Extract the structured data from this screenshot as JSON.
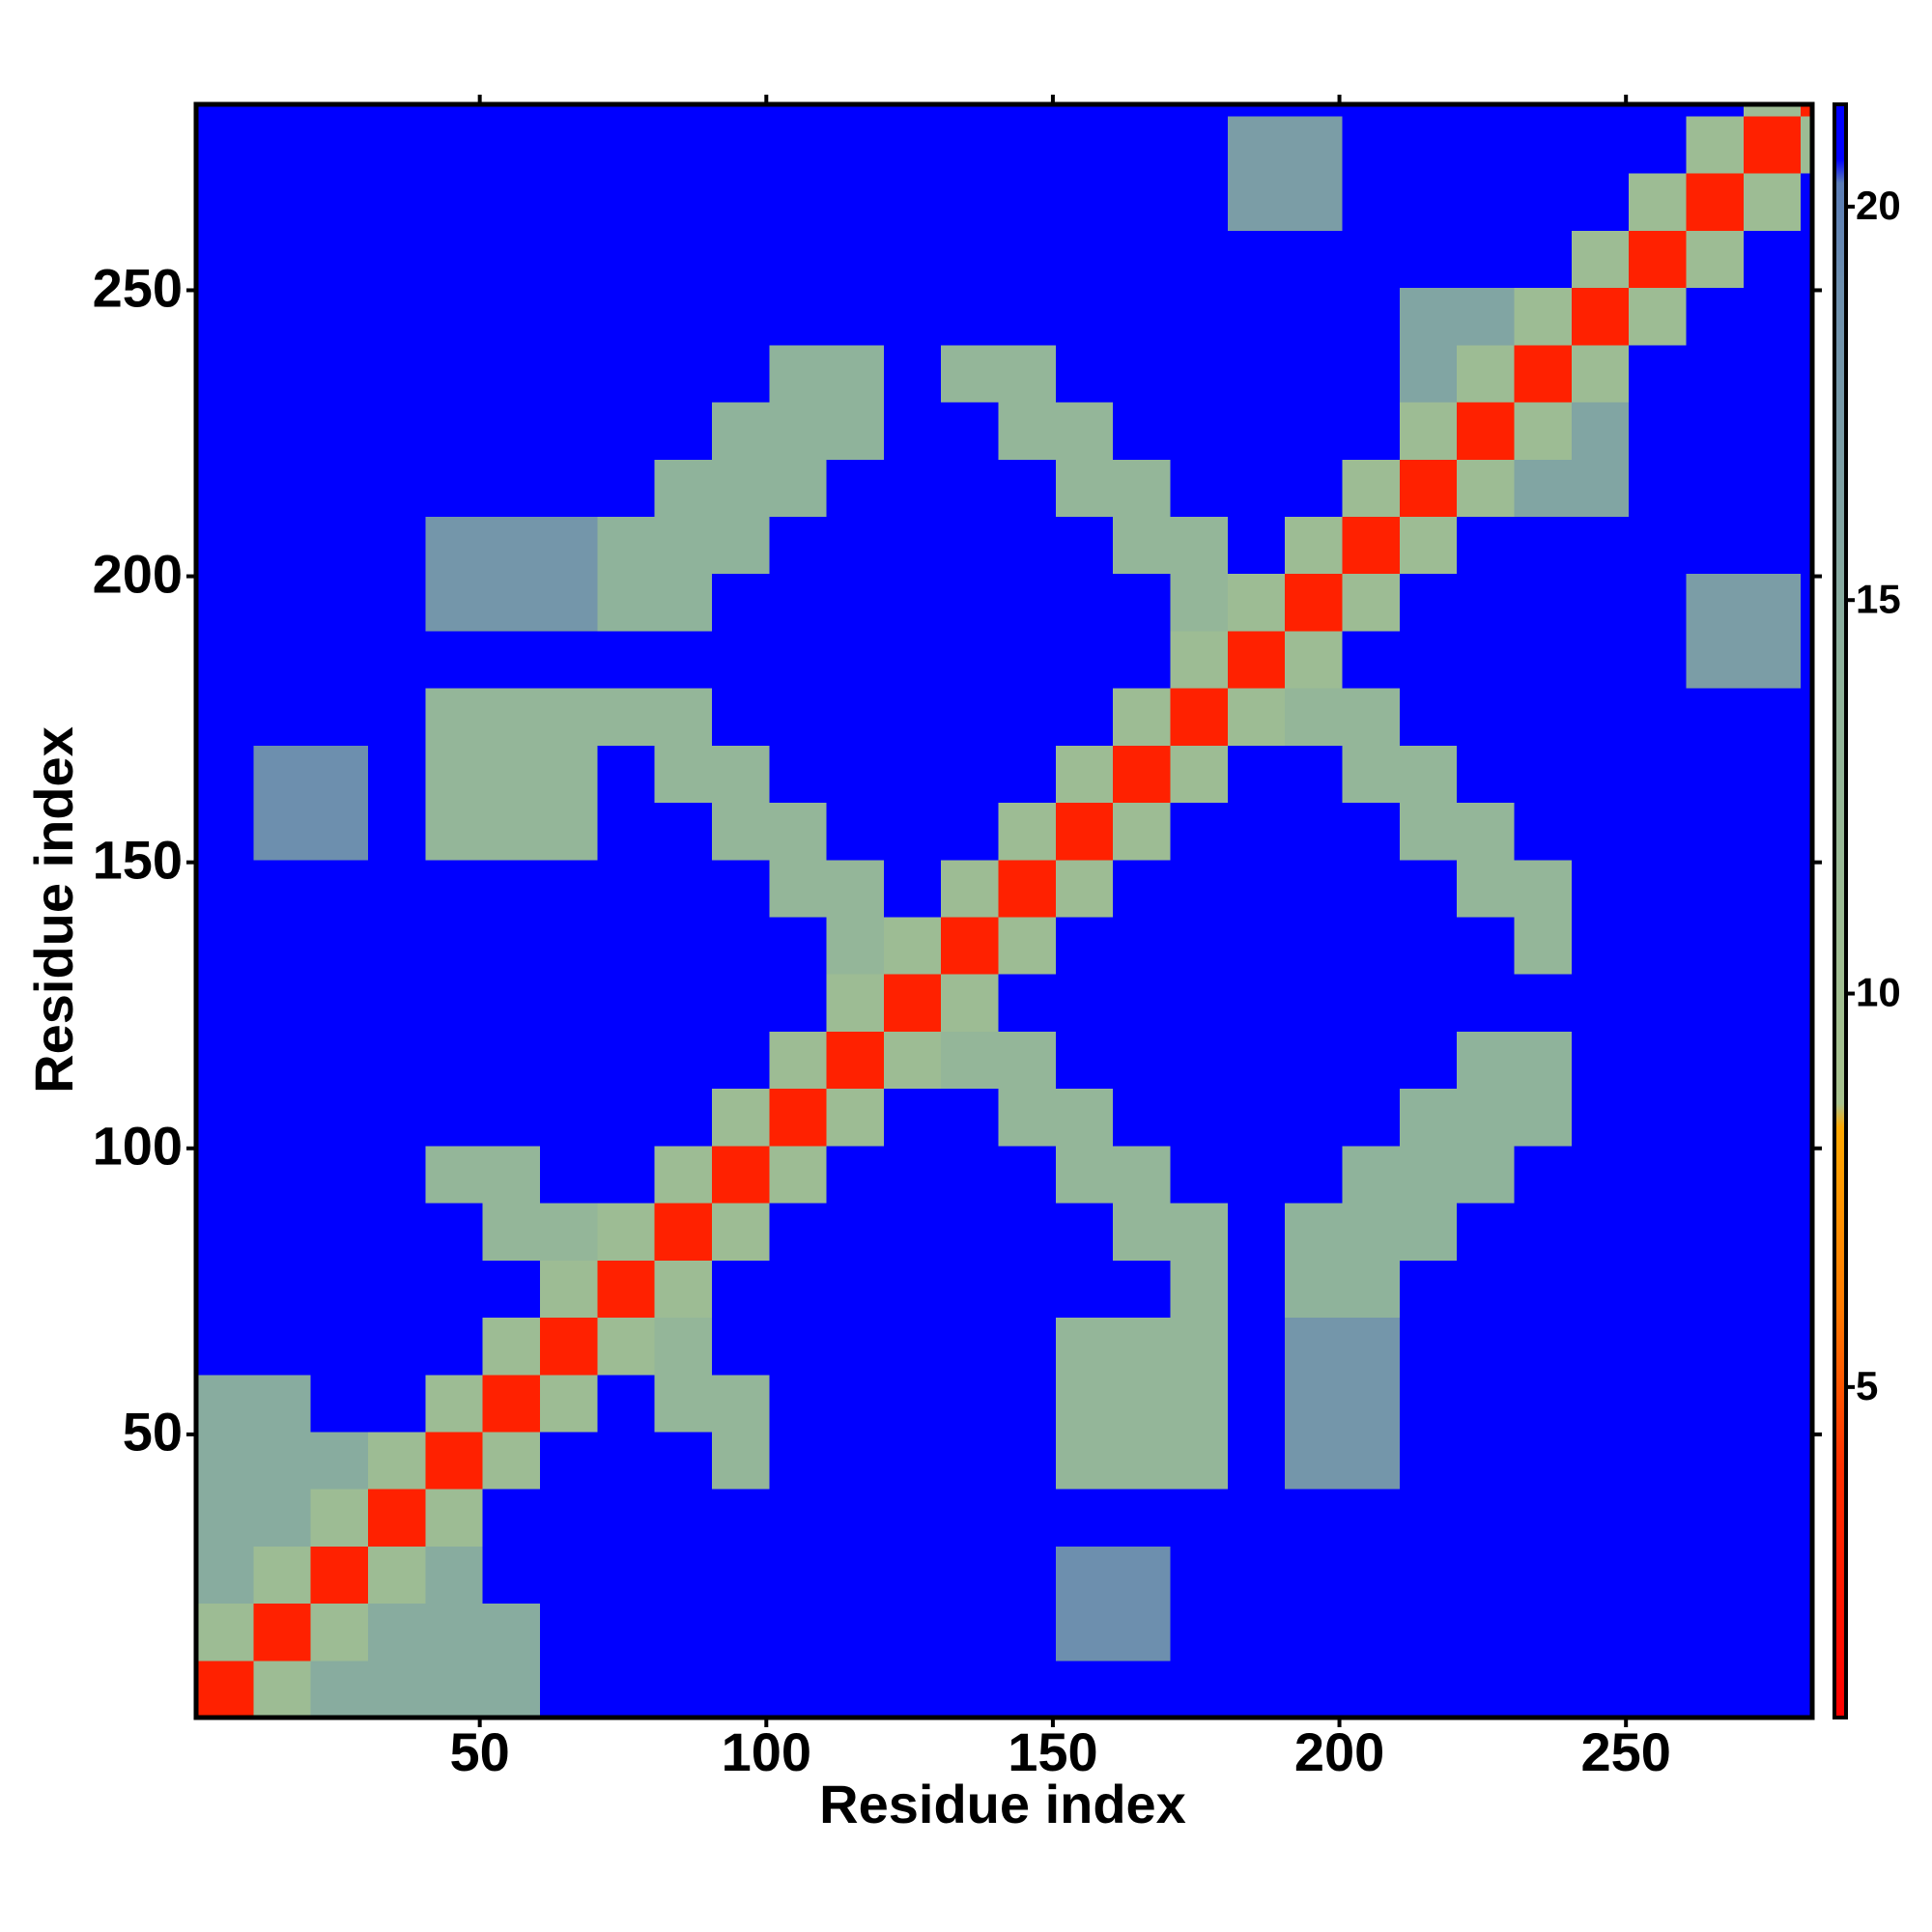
{
  "chart_data": {
    "type": "heatmap",
    "xlabel": "Residue index",
    "ylabel": "Residue index",
    "xlim": [
      0.5,
      282.5
    ],
    "ylim": [
      0.5,
      282.5
    ],
    "xticks": [
      50,
      100,
      150,
      200,
      250
    ],
    "yticks": [
      50,
      100,
      150,
      200,
      250
    ],
    "xbins": [
      0.5,
      10.5,
      20.5,
      30.5,
      40.5,
      50.5,
      60.5,
      70.5,
      80.5,
      90.5,
      100.5,
      110.5,
      120.5,
      130.5,
      140.5,
      150.5,
      160.5,
      170.5,
      180.5,
      190.5,
      200.5,
      210.5,
      220.5,
      230.5,
      240.5,
      250.5,
      260.5,
      270.5,
      280.5,
      282.5
    ],
    "ybins": [
      0.5,
      10.5,
      20.5,
      30.5,
      40.5,
      50.5,
      60.5,
      70.5,
      80.5,
      90.5,
      100.5,
      110.5,
      120.5,
      130.5,
      140.5,
      150.5,
      160.5,
      170.5,
      180.5,
      190.5,
      200.5,
      210.5,
      220.5,
      230.5,
      240.5,
      250.5,
      260.5,
      270.5,
      280.5,
      282.5
    ],
    "z": [
      [
        3,
        11,
        15,
        15,
        15,
        15,
        21,
        21,
        21,
        21,
        21,
        21,
        21,
        21,
        21,
        21,
        21,
        21,
        21,
        21,
        21,
        21,
        21,
        21,
        21,
        21,
        21,
        21,
        21
      ],
      [
        11,
        3,
        11,
        15,
        15,
        15,
        21,
        21,
        21,
        21,
        21,
        21,
        21,
        21,
        21,
        19,
        19,
        21,
        21,
        21,
        21,
        21,
        21,
        21,
        21,
        21,
        21,
        21,
        21
      ],
      [
        15,
        11,
        3,
        11,
        15,
        21,
        21,
        21,
        21,
        21,
        21,
        21,
        21,
        21,
        21,
        19,
        19,
        21,
        21,
        21,
        21,
        21,
        21,
        21,
        21,
        21,
        21,
        21,
        21
      ],
      [
        15,
        15,
        11,
        3,
        11,
        21,
        21,
        21,
        21,
        21,
        21,
        21,
        21,
        21,
        21,
        21,
        21,
        21,
        21,
        21,
        21,
        21,
        21,
        21,
        21,
        21,
        21,
        21,
        21
      ],
      [
        15,
        15,
        15,
        11,
        3,
        11,
        21,
        21,
        21,
        13,
        21,
        21,
        21,
        21,
        21,
        13,
        13,
        13,
        21,
        18,
        18,
        21,
        21,
        21,
        21,
        21,
        21,
        21,
        21
      ],
      [
        15,
        15,
        21,
        21,
        11,
        3,
        11,
        21,
        13,
        13,
        21,
        21,
        21,
        21,
        21,
        13,
        13,
        13,
        21,
        18,
        18,
        21,
        21,
        21,
        21,
        21,
        21,
        21,
        21
      ],
      [
        21,
        21,
        21,
        21,
        21,
        11,
        3,
        11,
        13,
        21,
        21,
        21,
        21,
        21,
        21,
        13,
        13,
        13,
        21,
        18,
        18,
        21,
        21,
        21,
        21,
        21,
        21,
        21,
        21
      ],
      [
        21,
        21,
        21,
        21,
        21,
        21,
        11,
        3,
        11,
        21,
        21,
        21,
        21,
        21,
        21,
        21,
        21,
        13,
        21,
        14,
        14,
        21,
        21,
        21,
        21,
        21,
        21,
        21,
        21
      ],
      [
        21,
        21,
        21,
        21,
        21,
        13,
        13,
        11,
        3,
        11,
        21,
        21,
        21,
        21,
        21,
        21,
        13,
        13,
        21,
        14,
        14,
        14,
        21,
        21,
        21,
        21,
        21,
        21,
        21
      ],
      [
        21,
        21,
        21,
        21,
        13,
        13,
        21,
        21,
        11,
        3,
        11,
        21,
        21,
        21,
        21,
        13,
        13,
        21,
        21,
        21,
        14,
        14,
        14,
        21,
        21,
        21,
        21,
        21,
        21
      ],
      [
        21,
        21,
        21,
        21,
        21,
        21,
        21,
        21,
        21,
        11,
        3,
        11,
        21,
        21,
        13,
        13,
        21,
        21,
        21,
        21,
        21,
        14,
        14,
        14,
        21,
        21,
        21,
        21,
        21
      ],
      [
        21,
        21,
        21,
        21,
        21,
        21,
        21,
        21,
        21,
        21,
        11,
        3,
        11,
        13,
        13,
        21,
        21,
        21,
        21,
        21,
        21,
        21,
        14,
        14,
        21,
        21,
        21,
        21,
        21
      ],
      [
        21,
        21,
        21,
        21,
        21,
        21,
        21,
        21,
        21,
        21,
        21,
        11,
        3,
        11,
        21,
        21,
        21,
        21,
        21,
        21,
        21,
        21,
        21,
        21,
        21,
        21,
        21,
        21,
        21
      ],
      [
        21,
        21,
        21,
        21,
        21,
        21,
        21,
        21,
        21,
        21,
        21,
        13,
        11,
        3,
        11,
        21,
        21,
        21,
        21,
        21,
        21,
        21,
        21,
        13,
        21,
        21,
        21,
        21,
        21
      ],
      [
        21,
        21,
        21,
        21,
        21,
        21,
        21,
        21,
        21,
        21,
        13,
        13,
        21,
        11,
        3,
        11,
        21,
        21,
        21,
        21,
        21,
        21,
        13,
        13,
        21,
        21,
        21,
        21,
        21
      ],
      [
        21,
        19,
        19,
        21,
        13,
        13,
        13,
        21,
        21,
        13,
        13,
        21,
        21,
        21,
        11,
        3,
        11,
        21,
        21,
        21,
        21,
        13,
        13,
        21,
        21,
        21,
        21,
        21,
        21
      ],
      [
        21,
        19,
        19,
        21,
        13,
        13,
        13,
        21,
        13,
        13,
        21,
        21,
        21,
        21,
        21,
        11,
        3,
        11,
        21,
        21,
        13,
        13,
        21,
        21,
        21,
        21,
        21,
        21,
        21
      ],
      [
        21,
        21,
        21,
        21,
        13,
        13,
        13,
        13,
        13,
        21,
        21,
        21,
        21,
        21,
        21,
        21,
        11,
        3,
        11,
        13,
        13,
        21,
        21,
        21,
        21,
        21,
        21,
        21,
        21
      ],
      [
        21,
        21,
        21,
        21,
        21,
        21,
        21,
        21,
        21,
        21,
        21,
        21,
        21,
        21,
        21,
        21,
        21,
        11,
        3,
        11,
        21,
        21,
        21,
        21,
        21,
        21,
        17,
        17,
        21
      ],
      [
        21,
        21,
        21,
        21,
        18,
        18,
        18,
        14,
        14,
        21,
        21,
        21,
        21,
        21,
        21,
        21,
        21,
        13,
        11,
        3,
        11,
        21,
        21,
        21,
        21,
        21,
        17,
        17,
        21
      ],
      [
        21,
        21,
        21,
        21,
        18,
        18,
        18,
        14,
        14,
        14,
        21,
        21,
        21,
        21,
        21,
        21,
        13,
        13,
        21,
        11,
        3,
        11,
        21,
        21,
        21,
        21,
        21,
        21,
        21
      ],
      [
        21,
        21,
        21,
        21,
        21,
        21,
        21,
        21,
        14,
        14,
        14,
        21,
        21,
        21,
        21,
        13,
        13,
        21,
        21,
        21,
        11,
        3,
        11,
        16,
        16,
        21,
        21,
        21,
        21
      ],
      [
        21,
        21,
        21,
        21,
        21,
        21,
        21,
        21,
        21,
        14,
        14,
        14,
        21,
        21,
        13,
        13,
        21,
        21,
        21,
        21,
        21,
        11,
        3,
        11,
        16,
        21,
        21,
        21,
        21
      ],
      [
        21,
        21,
        21,
        21,
        21,
        21,
        21,
        21,
        21,
        21,
        14,
        14,
        21,
        13,
        13,
        21,
        21,
        21,
        21,
        21,
        21,
        16,
        11,
        3,
        11,
        21,
        21,
        21,
        21
      ],
      [
        21,
        21,
        21,
        21,
        21,
        21,
        21,
        21,
        21,
        21,
        21,
        21,
        21,
        21,
        21,
        21,
        21,
        21,
        21,
        21,
        21,
        16,
        16,
        11,
        3,
        11,
        21,
        21,
        21
      ],
      [
        21,
        21,
        21,
        21,
        21,
        21,
        21,
        21,
        21,
        21,
        21,
        21,
        21,
        21,
        21,
        21,
        21,
        21,
        21,
        21,
        21,
        21,
        21,
        21,
        11,
        3,
        11,
        21,
        21
      ],
      [
        21,
        21,
        21,
        21,
        21,
        21,
        21,
        21,
        21,
        21,
        21,
        21,
        21,
        21,
        21,
        21,
        21,
        21,
        17,
        17,
        21,
        21,
        21,
        21,
        21,
        11,
        3,
        11,
        21
      ],
      [
        21,
        21,
        21,
        21,
        21,
        21,
        21,
        21,
        21,
        21,
        21,
        21,
        21,
        21,
        21,
        21,
        21,
        21,
        17,
        17,
        21,
        21,
        21,
        21,
        21,
        21,
        11,
        3,
        11
      ],
      [
        21,
        21,
        21,
        21,
        21,
        21,
        21,
        21,
        21,
        21,
        21,
        21,
        21,
        21,
        21,
        21,
        21,
        21,
        21,
        21,
        21,
        21,
        21,
        21,
        21,
        21,
        21,
        11,
        3
      ]
    ],
    "colorbar": {
      "zlim": [
        0.8,
        21.3
      ],
      "zticks": [
        5,
        10,
        15,
        20
      ]
    },
    "colorscale": [
      {
        "value": 0.8,
        "color": "#ff0000"
      },
      {
        "value": 4,
        "color": "#ff3000"
      },
      {
        "value": 6,
        "color": "#ff7a00"
      },
      {
        "value": 8.3,
        "color": "#ffa800"
      },
      {
        "value": 8.6,
        "color": "#a8c38e"
      },
      {
        "value": 14,
        "color": "#8fb39b"
      },
      {
        "value": 19,
        "color": "#6d8fae"
      },
      {
        "value": 20.3,
        "color": "#5a7cb6"
      },
      {
        "value": 20.6,
        "color": "#0000ff"
      },
      {
        "value": 21.3,
        "color": "#0000ff"
      }
    ]
  }
}
